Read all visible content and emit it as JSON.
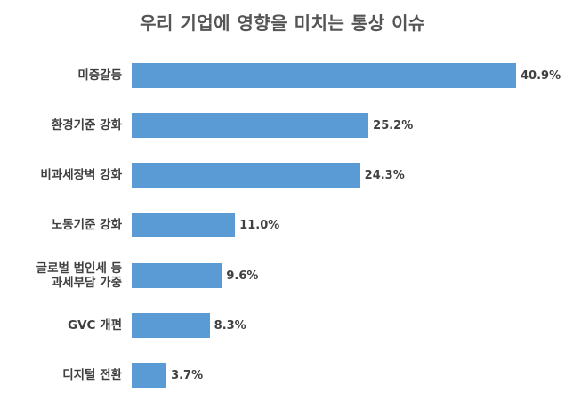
{
  "title": "우리 기업에 영향을 미치는 통상 이슈",
  "colors": {
    "bar": "#5b9bd5",
    "text": "#404040",
    "title": "#555555"
  },
  "items": [
    {
      "label": "미중갈등",
      "value": 40.9,
      "value_label": "40.9%"
    },
    {
      "label": "환경기준 강화",
      "value": 25.2,
      "value_label": "25.2%"
    },
    {
      "label": "비과세장벽 강화",
      "value": 24.3,
      "value_label": "24.3%"
    },
    {
      "label": "노동기준 강화",
      "value": 11.0,
      "value_label": "11.0%"
    },
    {
      "label": "글로벌 법인세 등\n과세부담 가중",
      "value": 9.6,
      "value_label": "9.6%"
    },
    {
      "label": "GVC 개편",
      "value": 8.3,
      "value_label": "8.3%"
    },
    {
      "label": "디지털 전환",
      "value": 3.7,
      "value_label": "3.7%"
    }
  ],
  "chart_data": {
    "type": "bar",
    "orientation": "horizontal",
    "title": "우리 기업에 영향을 미치는 통상 이슈",
    "categories": [
      "미중갈등",
      "환경기준 강화",
      "비과세장벽 강화",
      "노동기준 강화",
      "글로벌 법인세 등 과세부담 가중",
      "GVC 개편",
      "디지털 전환"
    ],
    "values": [
      40.9,
      25.2,
      24.3,
      11.0,
      9.6,
      8.3,
      3.7
    ],
    "unit": "%",
    "xlabel": "",
    "ylabel": "",
    "grid": false,
    "legend": null,
    "data_labels": true
  }
}
